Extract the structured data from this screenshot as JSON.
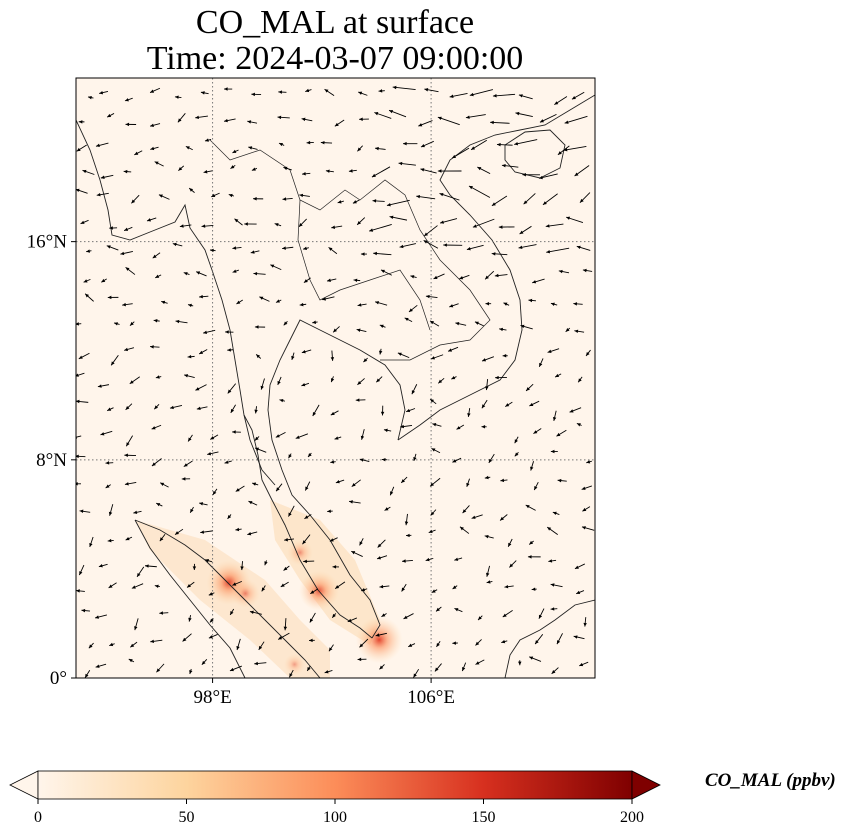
{
  "title": {
    "line1": "CO_MAL at surface",
    "line2": "Time: 2024-03-07 09:00:00"
  },
  "map": {
    "projection": "PlateCarree",
    "lon_range": [
      93,
      112
    ],
    "lat_range": [
      0,
      22
    ],
    "gridlines": "dotted",
    "background_color": "#fff5eb",
    "lon_ticks": [
      {
        "value": 98,
        "label": "98°E"
      },
      {
        "value": 106,
        "label": "106°E"
      }
    ],
    "lat_ticks": [
      {
        "value": 0,
        "label": "0°"
      },
      {
        "value": 8,
        "label": "8°N"
      },
      {
        "value": 16,
        "label": "16°N"
      }
    ],
    "hotspots": [
      {
        "lon": 98.6,
        "lat": 3.5,
        "value": 130
      },
      {
        "lon": 99.2,
        "lat": 3.1,
        "value": 60
      },
      {
        "lon": 101.9,
        "lat": 3.2,
        "value": 110
      },
      {
        "lon": 101.2,
        "lat": 4.6,
        "value": 45
      },
      {
        "lon": 104.1,
        "lat": 1.4,
        "value": 140
      },
      {
        "lon": 101.0,
        "lat": 0.5,
        "value": 25
      }
    ]
  },
  "colorbar": {
    "title": "CO_MAL (ppbv)",
    "min": 0,
    "max": 200,
    "extend": "both",
    "cmap": "OrRd",
    "colors": [
      "#fff5eb",
      "#fdd49e",
      "#fc8d59",
      "#d7301f",
      "#7f0000"
    ],
    "ticks": [
      {
        "value": 0,
        "label": "0"
      },
      {
        "value": 50,
        "label": "50"
      },
      {
        "value": 100,
        "label": "100"
      },
      {
        "value": 150,
        "label": "150"
      },
      {
        "value": 200,
        "label": "200"
      }
    ]
  }
}
